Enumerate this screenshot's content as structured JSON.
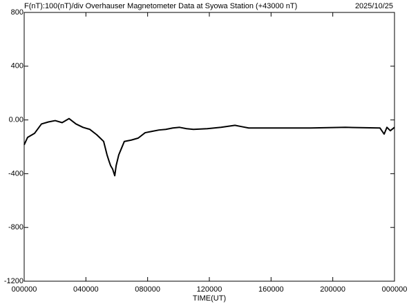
{
  "chart_data": {
    "type": "line",
    "title": "F(nT):100(nT)/div  Overhauser Magnetometer Data at Syowa Station (+43000 nT)",
    "date": "2025/10/25",
    "x_label": "TIME(UT)",
    "xlim": [
      0,
      24
    ],
    "xticks": [
      {
        "value": 0,
        "label": "000000"
      },
      {
        "value": 4,
        "label": "040000"
      },
      {
        "value": 8,
        "label": "080000"
      },
      {
        "value": 12,
        "label": "120000"
      },
      {
        "value": 16,
        "label": "160000"
      },
      {
        "value": 20,
        "label": "200000"
      },
      {
        "value": 24,
        "label": "000000"
      }
    ],
    "ylim": [
      -1200,
      800
    ],
    "yticks": [
      {
        "value": -1200,
        "label": "-1200"
      },
      {
        "value": -800,
        "label": "-800"
      },
      {
        "value": -400,
        "label": "-400"
      },
      {
        "value": 0,
        "label": "0.00"
      },
      {
        "value": 400,
        "label": "400"
      },
      {
        "value": 800,
        "label": "800"
      }
    ],
    "x": [
      0,
      0.22,
      0.67,
      1.12,
      1.57,
      2.01,
      2.46,
      2.91,
      3.36,
      3.81,
      4.25,
      4.7,
      4.93,
      5.15,
      5.37,
      5.51,
      5.6,
      5.73,
      5.87,
      5.96,
      6.13,
      6.31,
      6.49,
      6.94,
      7.39,
      7.84,
      8.28,
      8.73,
      9.18,
      9.63,
      10.07,
      10.52,
      10.97,
      11.87,
      12.76,
      13.66,
      14.1,
      14.55,
      16.34,
      18.58,
      20.82,
      23.06,
      23.33,
      23.51,
      23.73,
      24
    ],
    "series": [
      {
        "name": "F",
        "color": "#000000",
        "values": [
          -185,
          -130,
          -100,
          -30,
          -15,
          -5,
          -20,
          10,
          -30,
          -55,
          -70,
          -110,
          -135,
          -160,
          -260,
          -310,
          -340,
          -365,
          -415,
          -340,
          -260,
          -210,
          -160,
          -150,
          -135,
          -95,
          -85,
          -75,
          -70,
          -60,
          -55,
          -65,
          -70,
          -65,
          -55,
          -40,
          -50,
          -60,
          -60,
          -60,
          -55,
          -60,
          -105,
          -55,
          -80,
          -55
        ]
      }
    ]
  }
}
